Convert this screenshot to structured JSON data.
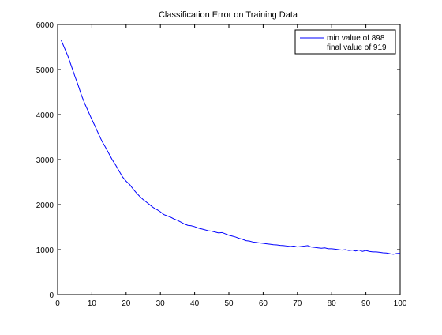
{
  "chart_data": {
    "type": "line",
    "title": "Classification Error on Training Data",
    "xlabel": "",
    "ylabel": "",
    "xlim": [
      0,
      100
    ],
    "ylim": [
      0,
      6000
    ],
    "xticks": [
      0,
      10,
      20,
      30,
      40,
      50,
      60,
      70,
      80,
      90,
      100
    ],
    "yticks": [
      0,
      1000,
      2000,
      3000,
      4000,
      5000,
      6000
    ],
    "grid": false,
    "legend": {
      "placement": "top-right",
      "entries": [
        "min value of 898",
        "final value of 919"
      ]
    },
    "series": [
      {
        "color": "#0000ff",
        "x": [
          1,
          2,
          3,
          4,
          5,
          6,
          7,
          8,
          9,
          10,
          11,
          12,
          13,
          14,
          15,
          16,
          17,
          18,
          19,
          20,
          21,
          22,
          23,
          24,
          25,
          26,
          27,
          28,
          29,
          30,
          31,
          32,
          33,
          34,
          35,
          36,
          37,
          38,
          39,
          40,
          41,
          42,
          43,
          44,
          45,
          46,
          47,
          48,
          49,
          50,
          51,
          52,
          53,
          54,
          55,
          56,
          57,
          58,
          59,
          60,
          61,
          62,
          63,
          64,
          65,
          66,
          67,
          68,
          69,
          70,
          71,
          72,
          73,
          74,
          75,
          76,
          77,
          78,
          79,
          80,
          81,
          82,
          83,
          84,
          85,
          86,
          87,
          88,
          89,
          90,
          91,
          92,
          93,
          94,
          95,
          96,
          97,
          98,
          99,
          100
        ],
        "values": [
          5660,
          5480,
          5300,
          5080,
          4860,
          4650,
          4420,
          4230,
          4060,
          3890,
          3730,
          3560,
          3400,
          3270,
          3130,
          2990,
          2870,
          2740,
          2610,
          2520,
          2450,
          2350,
          2260,
          2180,
          2110,
          2050,
          1990,
          1930,
          1890,
          1840,
          1780,
          1750,
          1720,
          1680,
          1650,
          1610,
          1570,
          1540,
          1530,
          1510,
          1480,
          1460,
          1440,
          1420,
          1410,
          1390,
          1370,
          1380,
          1350,
          1320,
          1300,
          1280,
          1250,
          1230,
          1200,
          1190,
          1170,
          1160,
          1150,
          1140,
          1130,
          1120,
          1110,
          1105,
          1095,
          1090,
          1080,
          1070,
          1080,
          1060,
          1070,
          1080,
          1090,
          1060,
          1050,
          1040,
          1030,
          1040,
          1020,
          1020,
          1010,
          1000,
          990,
          1000,
          980,
          990,
          970,
          990,
          960,
          980,
          960,
          950,
          950,
          940,
          930,
          925,
          910,
          898,
          915,
          919
        ]
      }
    ]
  }
}
